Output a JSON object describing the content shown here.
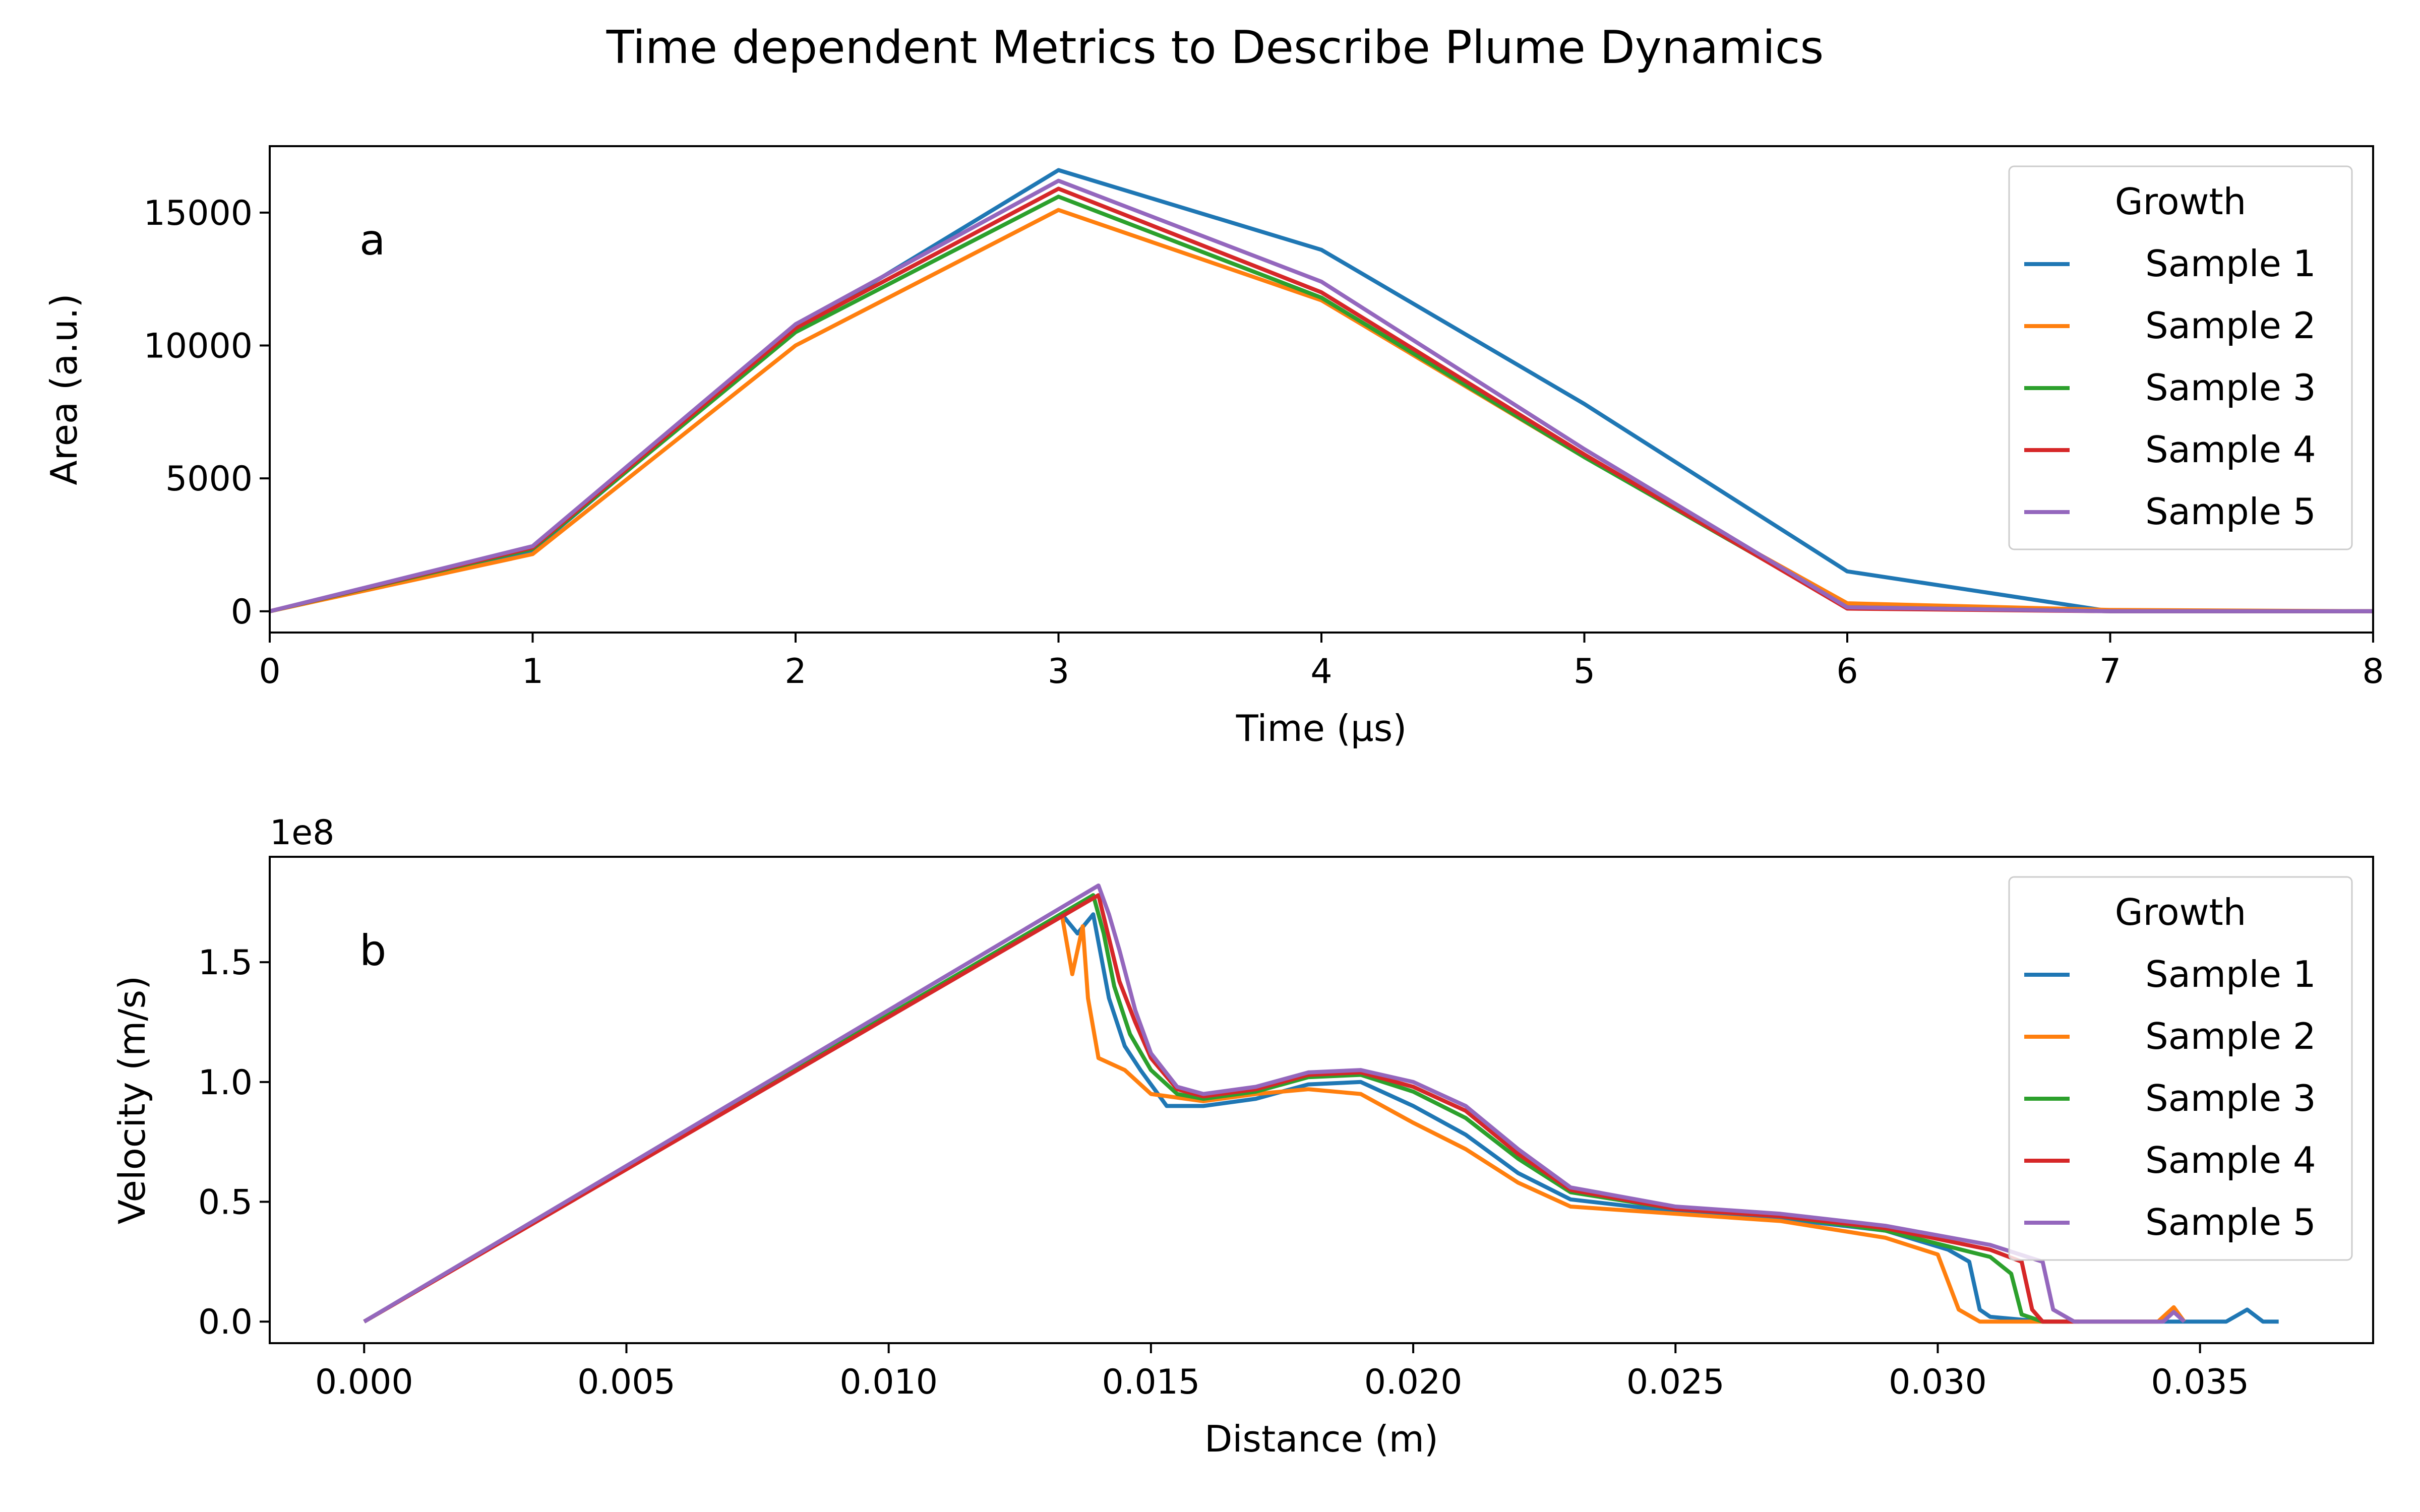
{
  "figure_title": "Time dependent Metrics to Describe Plume Dynamics",
  "colors": {
    "Sample 1": "#1f77b4",
    "Sample 2": "#ff7f0e",
    "Sample 3": "#2ca02c",
    "Sample 4": "#d62728",
    "Sample 5": "#9467bd"
  },
  "chart_data": [
    {
      "type": "line",
      "panel_label": "a",
      "xlabel": "Time (µs)",
      "ylabel": "Area (a.u.)",
      "xlim": [
        0,
        8
      ],
      "ylim": [
        -800,
        17500
      ],
      "xticks": [
        0,
        1,
        2,
        3,
        4,
        5,
        6,
        7,
        8
      ],
      "xtick_labels": [
        "0",
        "1",
        "2",
        "3",
        "4",
        "5",
        "6",
        "7",
        "8"
      ],
      "yticks": [
        0,
        5000,
        10000,
        15000
      ],
      "ytick_labels": [
        "0",
        "5000",
        "10000",
        "15000"
      ],
      "legend": {
        "title": "Growth",
        "position": "upper right"
      },
      "x": [
        0,
        1,
        2,
        3,
        4,
        5,
        6,
        7,
        8
      ],
      "series": [
        {
          "name": "Sample 1",
          "values": [
            0,
            2300,
            10600,
            16600,
            13600,
            7800,
            1500,
            0,
            0
          ]
        },
        {
          "name": "Sample 2",
          "values": [
            0,
            2150,
            10000,
            15100,
            11700,
            5800,
            300,
            50,
            0
          ]
        },
        {
          "name": "Sample 3",
          "values": [
            0,
            2350,
            10500,
            15600,
            11800,
            5800,
            150,
            0,
            0
          ]
        },
        {
          "name": "Sample 4",
          "values": [
            0,
            2400,
            10650,
            15900,
            12000,
            5900,
            100,
            0,
            0
          ]
        },
        {
          "name": "Sample 5",
          "values": [
            0,
            2450,
            10800,
            16200,
            12400,
            6100,
            150,
            0,
            0
          ]
        }
      ]
    },
    {
      "type": "line",
      "panel_label": "b",
      "xlabel": "Distance (m)",
      "ylabel": "Velocity (m/s)",
      "y_offset_label": "1e8",
      "xlim": [
        -0.0018,
        0.0383
      ],
      "ylim": [
        -0.09,
        1.94
      ],
      "xticks": [
        0,
        0.005,
        0.01,
        0.015,
        0.02,
        0.025,
        0.03,
        0.035
      ],
      "xtick_labels": [
        "0.000",
        "0.005",
        "0.010",
        "0.015",
        "0.020",
        "0.025",
        "0.030",
        "0.035"
      ],
      "yticks": [
        0,
        0.5,
        1.0,
        1.5
      ],
      "ytick_labels": [
        "0.0",
        "0.5",
        "1.0",
        "1.5"
      ],
      "y_units_note": "values in units of 1e8 m/s",
      "legend": {
        "title": "Growth",
        "position": "upper right"
      },
      "series": [
        {
          "name": "Sample 1",
          "points": [
            [
              0,
              0
            ],
            [
              0.0133,
              1.7
            ],
            [
              0.0136,
              1.62
            ],
            [
              0.0139,
              1.7
            ],
            [
              0.0142,
              1.35
            ],
            [
              0.0145,
              1.15
            ],
            [
              0.0148,
              1.05
            ],
            [
              0.0153,
              0.9
            ],
            [
              0.016,
              0.9
            ],
            [
              0.017,
              0.93
            ],
            [
              0.018,
              0.99
            ],
            [
              0.019,
              1.0
            ],
            [
              0.02,
              0.9
            ],
            [
              0.021,
              0.78
            ],
            [
              0.022,
              0.62
            ],
            [
              0.023,
              0.51
            ],
            [
              0.025,
              0.46
            ],
            [
              0.027,
              0.43
            ],
            [
              0.029,
              0.38
            ],
            [
              0.0302,
              0.3
            ],
            [
              0.0306,
              0.25
            ],
            [
              0.0308,
              0.05
            ],
            [
              0.031,
              0.02
            ],
            [
              0.032,
              0
            ],
            [
              0.0355,
              0
            ],
            [
              0.0359,
              0.05
            ],
            [
              0.0362,
              0
            ],
            [
              0.0365,
              0
            ]
          ]
        },
        {
          "name": "Sample 2",
          "points": [
            [
              0,
              0
            ],
            [
              0.0133,
              1.7
            ],
            [
              0.0135,
              1.45
            ],
            [
              0.0137,
              1.65
            ],
            [
              0.0138,
              1.35
            ],
            [
              0.014,
              1.1
            ],
            [
              0.0145,
              1.05
            ],
            [
              0.015,
              0.95
            ],
            [
              0.016,
              0.92
            ],
            [
              0.017,
              0.95
            ],
            [
              0.018,
              0.97
            ],
            [
              0.019,
              0.95
            ],
            [
              0.02,
              0.83
            ],
            [
              0.021,
              0.72
            ],
            [
              0.022,
              0.58
            ],
            [
              0.023,
              0.48
            ],
            [
              0.025,
              0.45
            ],
            [
              0.027,
              0.42
            ],
            [
              0.029,
              0.35
            ],
            [
              0.03,
              0.28
            ],
            [
              0.0304,
              0.05
            ],
            [
              0.0308,
              0
            ],
            [
              0.0342,
              0
            ],
            [
              0.0345,
              0.06
            ],
            [
              0.0347,
              0
            ]
          ]
        },
        {
          "name": "Sample 3",
          "points": [
            [
              0,
              0
            ],
            [
              0.0139,
              1.78
            ],
            [
              0.0141,
              1.62
            ],
            [
              0.0143,
              1.4
            ],
            [
              0.0146,
              1.2
            ],
            [
              0.015,
              1.05
            ],
            [
              0.0155,
              0.95
            ],
            [
              0.016,
              0.93
            ],
            [
              0.017,
              0.96
            ],
            [
              0.018,
              1.02
            ],
            [
              0.019,
              1.03
            ],
            [
              0.02,
              0.96
            ],
            [
              0.021,
              0.85
            ],
            [
              0.022,
              0.68
            ],
            [
              0.023,
              0.54
            ],
            [
              0.025,
              0.47
            ],
            [
              0.027,
              0.44
            ],
            [
              0.029,
              0.38
            ],
            [
              0.031,
              0.27
            ],
            [
              0.0314,
              0.2
            ],
            [
              0.0316,
              0.03
            ],
            [
              0.032,
              0
            ],
            [
              0.0325,
              0
            ]
          ]
        },
        {
          "name": "Sample 4",
          "points": [
            [
              0,
              0
            ],
            [
              0.014,
              1.78
            ],
            [
              0.0142,
              1.6
            ],
            [
              0.0144,
              1.42
            ],
            [
              0.0147,
              1.25
            ],
            [
              0.015,
              1.1
            ],
            [
              0.0155,
              0.97
            ],
            [
              0.016,
              0.94
            ],
            [
              0.017,
              0.97
            ],
            [
              0.018,
              1.03
            ],
            [
              0.019,
              1.04
            ],
            [
              0.02,
              0.98
            ],
            [
              0.021,
              0.88
            ],
            [
              0.022,
              0.7
            ],
            [
              0.023,
              0.55
            ],
            [
              0.025,
              0.47
            ],
            [
              0.027,
              0.44
            ],
            [
              0.029,
              0.39
            ],
            [
              0.031,
              0.3
            ],
            [
              0.0316,
              0.25
            ],
            [
              0.0318,
              0.05
            ],
            [
              0.032,
              0
            ],
            [
              0.0327,
              0
            ]
          ]
        },
        {
          "name": "Sample 5",
          "points": [
            [
              0,
              0
            ],
            [
              0.014,
              1.82
            ],
            [
              0.0142,
              1.7
            ],
            [
              0.0144,
              1.55
            ],
            [
              0.0147,
              1.3
            ],
            [
              0.015,
              1.12
            ],
            [
              0.0155,
              0.98
            ],
            [
              0.016,
              0.95
            ],
            [
              0.017,
              0.98
            ],
            [
              0.018,
              1.04
            ],
            [
              0.019,
              1.05
            ],
            [
              0.02,
              1.0
            ],
            [
              0.021,
              0.9
            ],
            [
              0.022,
              0.72
            ],
            [
              0.023,
              0.56
            ],
            [
              0.025,
              0.48
            ],
            [
              0.027,
              0.45
            ],
            [
              0.029,
              0.4
            ],
            [
              0.031,
              0.32
            ],
            [
              0.032,
              0.25
            ],
            [
              0.0322,
              0.05
            ],
            [
              0.0326,
              0
            ],
            [
              0.0343,
              0
            ],
            [
              0.0345,
              0.04
            ],
            [
              0.0347,
              0
            ]
          ]
        }
      ]
    }
  ]
}
